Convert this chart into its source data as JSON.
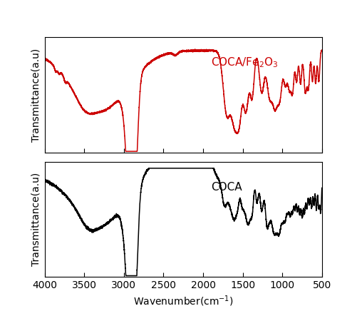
{
  "xlabel": "Wavenumber(cm$^{-1}$)",
  "ylabel": "Transmittance(a.u)",
  "xlim": [
    4000,
    500
  ],
  "label_coca_fe": "COCA/Fe$_2$O$_3$",
  "label_coca": "COCA",
  "color_top": "#cc0000",
  "color_bottom": "#000000",
  "label_fontsize": 10,
  "tick_fontsize": 9,
  "annotation_fontsize": 11
}
